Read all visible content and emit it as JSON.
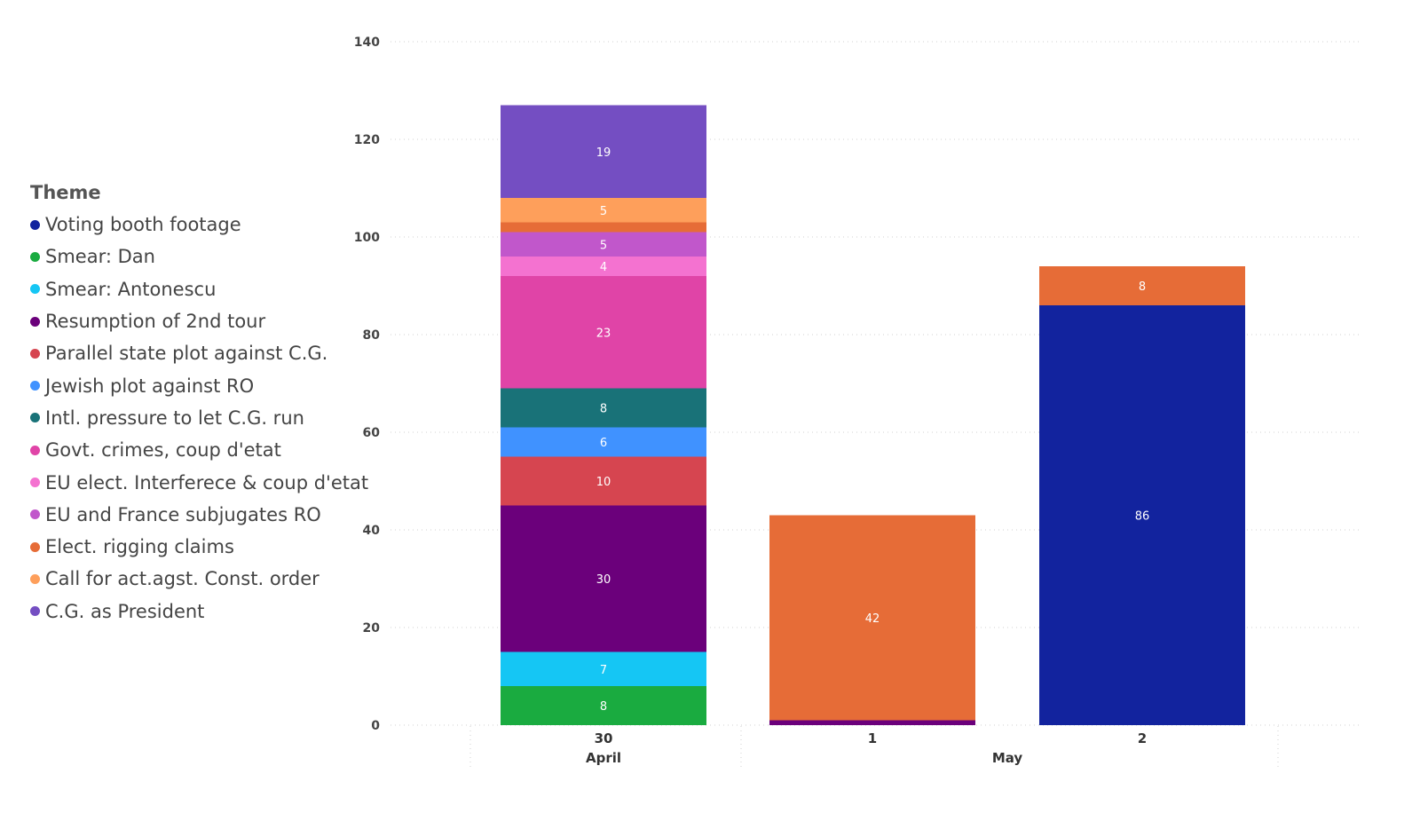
{
  "chart_data": {
    "type": "bar",
    "stacked": true,
    "legend_title": "Theme",
    "legend_position": "left",
    "grid": true,
    "ylim": [
      0,
      140
    ],
    "yticks": [
      0,
      20,
      40,
      60,
      80,
      100,
      120,
      140
    ],
    "categories": [
      "30",
      "1",
      "2"
    ],
    "category_groups": [
      {
        "label": "April",
        "categories": [
          "30"
        ]
      },
      {
        "label": "May",
        "categories": [
          "1",
          "2"
        ]
      }
    ],
    "series": [
      {
        "name": "Voting booth footage",
        "color": "#12239E",
        "values": [
          0,
          0,
          86
        ]
      },
      {
        "name": "Smear: Dan",
        "color": "#1AAB40",
        "values": [
          8,
          0,
          0
        ]
      },
      {
        "name": "Smear: Antonescu",
        "color": "#15C6F4",
        "values": [
          7,
          0,
          0
        ]
      },
      {
        "name": "Resumption of 2nd tour",
        "color": "#6B007B",
        "values": [
          30,
          1,
          0
        ]
      },
      {
        "name": "Parallel state plot against C.G.",
        "color": "#D64550",
        "values": [
          10,
          0,
          0
        ]
      },
      {
        "name": "Jewish plot against RO",
        "color": "#4092FF",
        "values": [
          6,
          0,
          0
        ]
      },
      {
        "name": "Intl. pressure to let C.G. run",
        "color": "#197278",
        "values": [
          8,
          0,
          0
        ]
      },
      {
        "name": "Govt. crimes, coup d'etat",
        "color": "#E044A7",
        "values": [
          23,
          0,
          0
        ]
      },
      {
        "name": "EU elect. Interferece & coup d'etat",
        "color": "#F472D0",
        "values": [
          4,
          0,
          0
        ]
      },
      {
        "name": "EU and France subjugates RO",
        "color": "#C157CB",
        "values": [
          5,
          0,
          0
        ]
      },
      {
        "name": "Elect. rigging claims",
        "color": "#E66C37",
        "values": [
          2,
          42,
          8
        ]
      },
      {
        "name": "Call for act.agst. Const. order",
        "color": "#FE9F5B",
        "values": [
          5,
          0,
          0
        ]
      },
      {
        "name": "C.G. as President",
        "color": "#744EC2",
        "values": [
          19,
          0,
          0
        ]
      }
    ],
    "shown_labels": [
      [
        "30",
        "Smear: Dan"
      ],
      [
        "30",
        "Smear: Antonescu"
      ],
      [
        "30",
        "Resumption of 2nd tour"
      ],
      [
        "30",
        "Parallel state plot against C.G."
      ],
      [
        "30",
        "Jewish plot against RO"
      ],
      [
        "30",
        "Intl. pressure to let C.G. run"
      ],
      [
        "30",
        "Govt. crimes, coup d'etat"
      ],
      [
        "30",
        "EU elect. Interferece & coup d'etat"
      ],
      [
        "30",
        "EU and France subjugates RO"
      ],
      [
        "30",
        "Call for act.agst. Const. order"
      ],
      [
        "30",
        "C.G. as President"
      ],
      [
        "1",
        "Elect. rigging claims"
      ],
      [
        "2",
        "Voting booth footage"
      ],
      [
        "2",
        "Elect. rigging claims"
      ]
    ]
  }
}
